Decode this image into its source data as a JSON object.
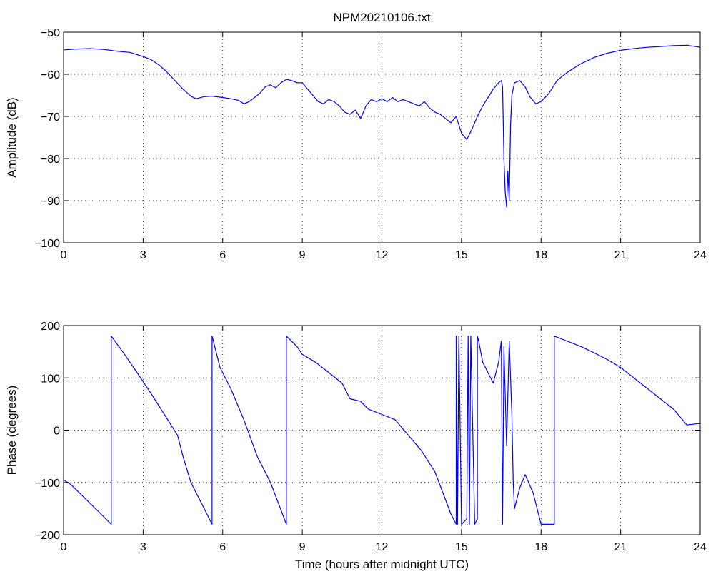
{
  "chart_data": [
    {
      "type": "line",
      "title": "NPM20210106.txt",
      "xlabel": "",
      "ylabel": "Amplitude (dB)",
      "xlim": [
        0,
        24
      ],
      "ylim": [
        -100,
        -50
      ],
      "xticks": [
        0,
        3,
        6,
        9,
        12,
        15,
        18,
        21,
        24
      ],
      "yticks": [
        -50,
        -60,
        -70,
        -80,
        -90,
        -100
      ],
      "xtick_labels": [
        "0",
        "3",
        "6",
        "9",
        "12",
        "15",
        "18",
        "21",
        "24"
      ],
      "ytick_labels": [
        "−50",
        "−60",
        "−70",
        "−80",
        "−90",
        "−100"
      ],
      "grid": true,
      "color": "#0000ff",
      "series": [
        {
          "x": [
            0,
            0.5,
            1.0,
            1.5,
            2.0,
            2.5,
            3.0,
            3.3,
            3.6,
            3.9,
            4.2,
            4.5,
            4.8,
            5.0,
            5.3,
            5.6,
            6.0,
            6.3,
            6.6,
            6.8,
            7.0,
            7.2,
            7.4,
            7.6,
            7.8,
            8.0,
            8.2,
            8.4,
            8.6,
            8.8,
            9.0,
            9.2,
            9.4,
            9.6,
            9.8,
            10.0,
            10.2,
            10.4,
            10.6,
            10.8,
            11.0,
            11.2,
            11.4,
            11.6,
            11.8,
            12.0,
            12.2,
            12.4,
            12.6,
            12.8,
            13.0,
            13.2,
            13.4,
            13.6,
            13.8,
            14.0,
            14.2,
            14.4,
            14.6,
            14.8,
            15.0,
            15.2,
            15.4,
            15.6,
            15.8,
            16.0,
            16.2,
            16.4,
            16.5,
            16.55,
            16.6,
            16.65,
            16.7,
            16.75,
            16.8,
            16.85,
            16.9,
            17.0,
            17.2,
            17.4,
            17.6,
            17.8,
            18.0,
            18.3,
            18.6,
            19.0,
            19.5,
            20.0,
            20.5,
            21.0,
            21.5,
            22.0,
            22.5,
            23.0,
            23.5,
            24.0
          ],
          "y": [
            -54.2,
            -54.0,
            -53.9,
            -54.1,
            -54.5,
            -54.8,
            -55.8,
            -56.5,
            -57.8,
            -59.5,
            -61.5,
            -63.5,
            -65.2,
            -65.8,
            -65.3,
            -65.2,
            -65.5,
            -65.8,
            -66.2,
            -67.0,
            -66.5,
            -65.5,
            -64.5,
            -63.0,
            -62.5,
            -63.2,
            -62.0,
            -61.2,
            -61.5,
            -62.0,
            -62.0,
            -63.5,
            -65.0,
            -66.5,
            -67.0,
            -66.0,
            -66.5,
            -67.5,
            -69.0,
            -69.5,
            -68.5,
            -70.5,
            -67.5,
            -66.0,
            -66.5,
            -65.8,
            -66.5,
            -65.5,
            -66.5,
            -66.0,
            -66.5,
            -67.0,
            -67.5,
            -66.5,
            -68.0,
            -69.0,
            -69.5,
            -70.5,
            -71.5,
            -70.0,
            -74.0,
            -75.5,
            -73.0,
            -70.0,
            -67.5,
            -65.5,
            -63.5,
            -62.0,
            -61.5,
            -63.0,
            -80.0,
            -88.0,
            -91.5,
            -83.0,
            -90.0,
            -72.0,
            -65.0,
            -62.0,
            -61.5,
            -63.0,
            -65.5,
            -67.0,
            -66.5,
            -64.5,
            -61.5,
            -59.5,
            -57.5,
            -56.0,
            -55.0,
            -54.3,
            -53.9,
            -53.6,
            -53.4,
            -53.2,
            -53.1,
            -53.6
          ]
        }
      ]
    },
    {
      "type": "line",
      "title": "",
      "xlabel": "Time (hours after midnight UTC)",
      "ylabel": "Phase (degrees)",
      "xlim": [
        0,
        24
      ],
      "ylim": [
        -200,
        200
      ],
      "xticks": [
        0,
        3,
        6,
        9,
        12,
        15,
        18,
        21,
        24
      ],
      "yticks": [
        200,
        100,
        0,
        -100,
        -200
      ],
      "xtick_labels": [
        "0",
        "3",
        "6",
        "9",
        "12",
        "15",
        "18",
        "21",
        "24"
      ],
      "ytick_labels": [
        "200",
        "100",
        "0",
        "−100",
        "−200"
      ],
      "grid": true,
      "color": "#0000ff",
      "series": [
        {
          "x": [
            0,
            0.3,
            0.8,
            1.3,
            1.8,
            1.8,
            2.3,
            2.8,
            3.3,
            3.8,
            4.3,
            4.5,
            4.8,
            5.2,
            5.6,
            5.6,
            5.9,
            6.3,
            6.8,
            7.3,
            7.8,
            8.4,
            8.4,
            8.8,
            9.0,
            9.5,
            10.0,
            10.5,
            10.8,
            11.2,
            11.5,
            12.0,
            12.5,
            13.0,
            13.5,
            14.0,
            14.3,
            14.6,
            14.8,
            14.8,
            14.85,
            14.9,
            15.0,
            15.2,
            15.25,
            15.3,
            15.35,
            15.5,
            15.6,
            15.6,
            15.65,
            15.8,
            16.0,
            16.2,
            16.4,
            16.5,
            16.55,
            16.6,
            16.7,
            16.8,
            16.9,
            16.95,
            17.0,
            17.2,
            17.4,
            17.7,
            18.0,
            18.5,
            18.5,
            19.0,
            19.5,
            20.0,
            20.5,
            21.0,
            21.5,
            22.0,
            22.5,
            23.0,
            23.5,
            24.0
          ],
          "y": [
            -95,
            -105,
            -130,
            -155,
            -180,
            180,
            145,
            108,
            70,
            30,
            -10,
            -50,
            -100,
            -140,
            -180,
            180,
            120,
            80,
            20,
            -50,
            -100,
            -180,
            180,
            160,
            145,
            130,
            110,
            90,
            60,
            55,
            40,
            30,
            20,
            -10,
            -40,
            -80,
            -120,
            -160,
            -180,
            180,
            -180,
            180,
            -180,
            -170,
            180,
            -180,
            180,
            -180,
            -170,
            180,
            170,
            130,
            110,
            90,
            130,
            170,
            -180,
            160,
            -30,
            170,
            30,
            -100,
            -150,
            -110,
            -85,
            -120,
            -180,
            -180,
            180,
            170,
            160,
            148,
            135,
            120,
            100,
            80,
            60,
            40,
            10,
            13
          ]
        }
      ]
    }
  ]
}
